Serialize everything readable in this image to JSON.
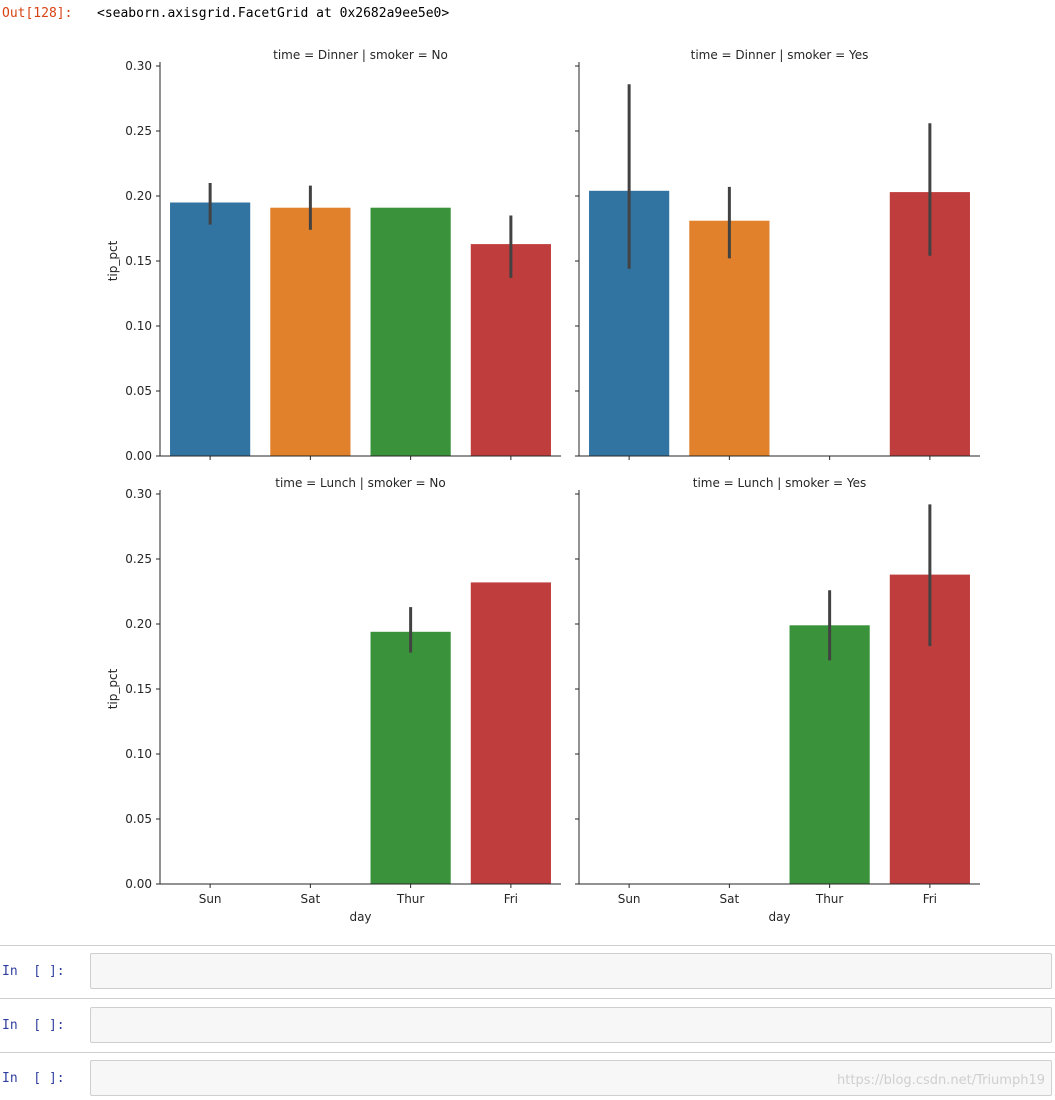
{
  "output": {
    "prompt": "Out[128]:",
    "text": "<seaborn.axisgrid.FacetGrid at 0x2682a9ee5e0>"
  },
  "chart_data": {
    "type": "bar",
    "facet_rows": "time",
    "facet_cols": "smoker",
    "categories": [
      "Sun",
      "Sat",
      "Thur",
      "Fri"
    ],
    "category_colors": [
      "#3274a1",
      "#e1812c",
      "#3a923a",
      "#c03d3e"
    ],
    "errorbar_color": "#424242",
    "ylim": [
      0,
      0.3
    ],
    "yticks": [
      "0.00",
      "0.05",
      "0.10",
      "0.15",
      "0.20",
      "0.25",
      "0.30"
    ],
    "ylabel": "tip_pct",
    "xlabel": "day",
    "panels": [
      {
        "title": "time = Dinner | smoker = No",
        "values": [
          0.195,
          0.191,
          0.191,
          0.163
        ],
        "ci": [
          [
            0.178,
            0.21
          ],
          [
            0.174,
            0.208
          ],
          null,
          [
            0.137,
            0.185
          ]
        ]
      },
      {
        "title": "time = Dinner | smoker = Yes",
        "values": [
          0.204,
          0.181,
          null,
          0.203
        ],
        "ci": [
          [
            0.144,
            0.286
          ],
          [
            0.152,
            0.207
          ],
          null,
          [
            0.154,
            0.256
          ]
        ]
      },
      {
        "title": "time = Lunch | smoker = No",
        "values": [
          null,
          null,
          0.194,
          0.232
        ],
        "ci": [
          null,
          null,
          [
            0.178,
            0.213
          ],
          null
        ]
      },
      {
        "title": "time = Lunch | smoker = Yes",
        "values": [
          null,
          null,
          0.199,
          0.238
        ],
        "ci": [
          null,
          null,
          [
            0.172,
            0.226
          ],
          [
            0.183,
            0.292
          ]
        ]
      }
    ]
  },
  "cells": [
    {
      "prompt": "In  [ ]:"
    },
    {
      "prompt": "In  [ ]:"
    },
    {
      "prompt": "In  [ ]:"
    }
  ],
  "watermark": "https://blog.csdn.net/Triumph19"
}
